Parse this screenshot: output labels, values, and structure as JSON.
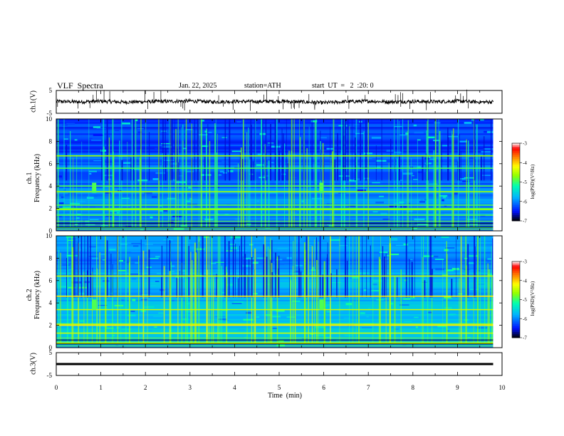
{
  "header": {
    "title": "VLF  Spectra",
    "date": "Jan. 22, 2025",
    "station": "station=ATH",
    "start": "start  UT  =   2  :20: 0"
  },
  "colors": {
    "background": "#ffffff",
    "frame": "#000000",
    "trace": "#000000",
    "colormap": [
      "#000000",
      "#0010ff",
      "#00b4ff",
      "#00ffb0",
      "#90ff00",
      "#ffff00",
      "#ff8000",
      "#ff0000",
      "#ffffff"
    ]
  },
  "chart_data": [
    {
      "type": "line",
      "name": "ch1-waveform",
      "ylabel": "ch.1(V)",
      "ylim": [
        -5,
        5
      ],
      "yticks": [
        "5",
        "-5"
      ],
      "xlim": [
        0,
        10
      ],
      "description_level": 0,
      "x": [
        0,
        0.5,
        1,
        1.5,
        2,
        2.5,
        3,
        3.5,
        4,
        4.5,
        5,
        5.5,
        6,
        6.5,
        7,
        7.5,
        8,
        8.5,
        9,
        9.5,
        9.8
      ],
      "values": [
        0.2,
        0.0,
        0.3,
        -0.1,
        0.1,
        0.2,
        0.4,
        0.0,
        0.2,
        0.1,
        0.3,
        0.0,
        -0.4,
        0.1,
        0.3,
        0.0,
        0.2,
        0.1,
        0.3,
        -0.1,
        0.0
      ]
    },
    {
      "type": "heatmap",
      "name": "ch1-spectrogram",
      "ylabel": "ch.1\nFrequency (kHz)",
      "ylim": [
        0,
        10
      ],
      "yticks": [
        "0",
        "2",
        "4",
        "6",
        "8",
        "10"
      ],
      "xlim": [
        0,
        9.8
      ],
      "colorbar": {
        "label": "log(PSD)(V²/Hz)",
        "ticks": [
          "-3",
          "-4",
          "-5",
          "-6",
          "-7"
        ],
        "range": [
          -7,
          -3
        ]
      },
      "bands_khz": [
        0.3,
        1.4,
        1.9,
        2.0,
        2.3,
        3.5,
        4.0,
        5.6,
        6.7
      ],
      "bursts_min": [
        0.85,
        5.95
      ]
    },
    {
      "type": "heatmap",
      "name": "ch2-spectrogram",
      "ylabel": "ch.2\nFrequency (kHz)",
      "ylim": [
        0,
        10
      ],
      "yticks": [
        "0",
        "2",
        "4",
        "6",
        "8",
        "10"
      ],
      "xlim": [
        0,
        9.8
      ],
      "colorbar": {
        "label": "log(PSD)(V²/Hz)",
        "ticks": [
          "-3",
          "-4",
          "-5",
          "-6",
          "-7"
        ],
        "range": [
          -7,
          -3
        ]
      },
      "bands_khz": [
        0.4,
        1.3,
        2.0,
        2.1,
        3.4,
        4.6,
        6.4
      ],
      "bursts_min": [
        0.85,
        5.95
      ]
    },
    {
      "type": "line",
      "name": "ch3-waveform",
      "ylabel": "ch.3(V)",
      "ylim": [
        -5,
        5
      ],
      "yticks": [
        "5",
        "-5"
      ],
      "xlim": [
        0,
        10
      ],
      "x": [
        0,
        9.8
      ],
      "values": [
        0,
        0
      ]
    }
  ],
  "xaxis": {
    "label": "Time  (min)",
    "ticks": [
      "0",
      "1",
      "2",
      "3",
      "4",
      "5",
      "6",
      "7",
      "8",
      "9",
      "10"
    ],
    "range": [
      0,
      10
    ]
  }
}
